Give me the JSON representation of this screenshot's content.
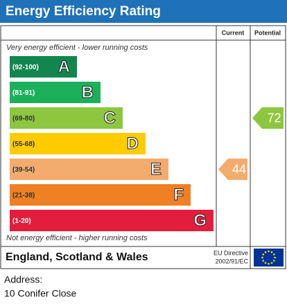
{
  "title": "Energy Efficiency Rating",
  "columns": [
    "Current",
    "Potential"
  ],
  "top_note": "Very energy efficient - lower running costs",
  "bands": [
    {
      "range": "(92-100)",
      "letter": "A",
      "color": "#12864e"
    },
    {
      "range": "(81-91)",
      "letter": "B",
      "color": "#1cb05a"
    },
    {
      "range": "(69-80)",
      "letter": "C",
      "color": "#8dc63f"
    },
    {
      "range": "(55-68)",
      "letter": "D",
      "color": "#ffcc00"
    },
    {
      "range": "(39-54)",
      "letter": "E",
      "color": "#f4ac6e"
    },
    {
      "range": "(21-38)",
      "letter": "F",
      "color": "#ef8024"
    },
    {
      "range": "(1-20)",
      "letter": "G",
      "color": "#e31d3c"
    }
  ],
  "current": {
    "value": 44
  },
  "potential": {
    "value": 72
  },
  "bottom_note": "Not energy efficient - higher running costs",
  "footer": {
    "region": "England, Scotland & Wales",
    "directive": [
      "EU Directive",
      "2002/91/EC"
    ]
  },
  "address": {
    "label": "Address:",
    "value": "10 Conifer Close"
  }
}
